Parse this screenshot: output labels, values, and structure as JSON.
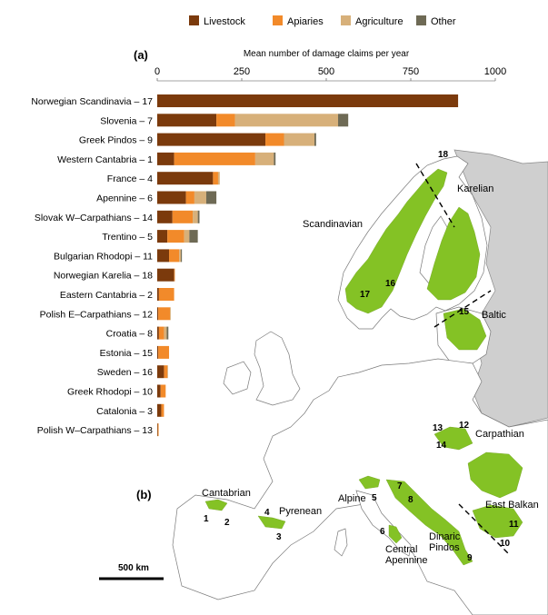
{
  "colors": {
    "livestock": "#7b3a0c",
    "apiaries": "#f28a2a",
    "agriculture": "#d7b07a",
    "other": "#6e6a55",
    "range_green": "#84c225",
    "land": "#ffffff",
    "nonstudy": "#cfcfcf",
    "border": "#7a7a7a",
    "sea": "#ffffff"
  },
  "legend": {
    "items": [
      {
        "key": "livestock",
        "label": "Livestock"
      },
      {
        "key": "apiaries",
        "label": "Apiaries"
      },
      {
        "key": "agriculture",
        "label": "Agriculture"
      },
      {
        "key": "other",
        "label": "Other"
      }
    ]
  },
  "panel_a": {
    "tag": "(a)"
  },
  "panel_b": {
    "tag": "(b)",
    "scale_label": "500 km",
    "region_labels": [
      "Scandinavian",
      "Karelian",
      "Baltic",
      "Carpathian",
      "Cantabrian",
      "Pyrenean",
      "Alpine",
      "Dinaric Pindos",
      "East Balkan",
      "Central Apennine"
    ],
    "population_numbers": [
      "1",
      "2",
      "3",
      "4",
      "5",
      "6",
      "7",
      "8",
      "9",
      "10",
      "11",
      "12",
      "13",
      "14",
      "15",
      "16",
      "17",
      "18"
    ]
  },
  "chart_data": {
    "type": "bar",
    "orientation": "horizontal",
    "stacked": true,
    "xlabel": "Mean number of damage claims per year",
    "xlim": [
      0,
      1000
    ],
    "xticks": [
      0,
      250,
      500,
      750,
      1000
    ],
    "legend_position": "top",
    "categories": [
      "Norwegian Scandinavia – 17",
      "Slovenia – 7",
      "Greek Pindos – 9",
      "Western Cantabria – 1",
      "France – 4",
      "Apennine – 6",
      "Slovak W–Carpathians – 14",
      "Trentino – 5",
      "Bulgarian Rhodopi – 11",
      "Norwegian Karelia – 18",
      "Eastern Cantabria – 2",
      "Polish E–Carpathians – 12",
      "Croatia – 8",
      "Estonia – 15",
      "Sweden – 16",
      "Greek Rhodopi – 10",
      "Catalonia – 3",
      "Polish W–Carpathians – 13"
    ],
    "series": [
      {
        "name": "Livestock",
        "values": [
          890,
          175,
          320,
          50,
          165,
          85,
          45,
          30,
          35,
          50,
          5,
          3,
          5,
          3,
          20,
          10,
          12,
          2
        ]
      },
      {
        "name": "Apiaries",
        "values": [
          0,
          55,
          55,
          240,
          15,
          25,
          60,
          50,
          30,
          2,
          45,
          35,
          15,
          32,
          10,
          15,
          8,
          1
        ]
      },
      {
        "name": "Agriculture",
        "values": [
          0,
          305,
          90,
          55,
          5,
          35,
          15,
          15,
          5,
          0,
          0,
          2,
          8,
          0,
          2,
          0,
          0,
          0
        ]
      },
      {
        "name": "Other",
        "values": [
          0,
          30,
          5,
          5,
          0,
          30,
          5,
          25,
          3,
          0,
          0,
          0,
          5,
          0,
          0,
          0,
          0,
          0
        ]
      }
    ]
  }
}
